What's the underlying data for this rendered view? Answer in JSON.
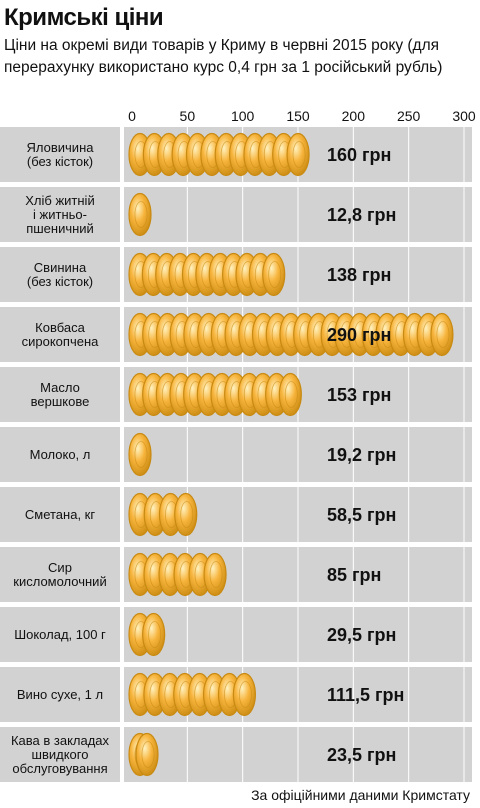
{
  "title": "Кримські ціни",
  "subtitle": "Ціни на окремі види товарів у Криму в червні 2015 року (для перерахунку використано курс 0,4 грн за 1 російський рубль)",
  "source": "За офіційними даними Кримстату",
  "colors": {
    "plot_background": "#d2d2d2",
    "row_stripe": "#ffffff",
    "coin_face": "#f7b43c",
    "coin_rim": "#c98a12",
    "coin_highlight": "#fff2c0",
    "gridline": "#ffffff"
  },
  "icons": {
    "coin": "gold-coin-icon"
  },
  "chart_data": {
    "type": "bar",
    "orientation": "horizontal",
    "mark_style": "stacked gold coins",
    "x_ticks": [
      0,
      50,
      100,
      150,
      200,
      250,
      300
    ],
    "xlim": [
      0,
      300
    ],
    "grid": true,
    "categories": [
      [
        "Яловичина",
        "(без кісток)"
      ],
      [
        "Хліб житній",
        "і житньо-",
        "пшеничний"
      ],
      [
        "Свинина",
        "(без кісток)"
      ],
      [
        "Ковбаса",
        "сирокопчена"
      ],
      [
        "Масло",
        "вершкове"
      ],
      [
        "Молоко, л"
      ],
      [
        "Сметана, кг"
      ],
      [
        "Сир",
        "кисломолочний"
      ],
      [
        "Шоколад, 100 г"
      ],
      [
        "Вино сухе, 1 л"
      ],
      [
        "Кава в закладах",
        "швидкого",
        "обслуговування"
      ]
    ],
    "values": [
      160,
      12.8,
      138,
      290,
      153,
      19.2,
      58.5,
      85,
      29.5,
      111.5,
      23.5
    ],
    "value_labels": [
      "160 грн",
      "12,8 грн",
      "138 грн",
      "290 грн",
      "153 грн",
      "19,2 грн",
      "58,5 грн",
      "85 грн",
      "29,5 грн",
      "111,5 грн",
      "23,5 грн"
    ]
  }
}
